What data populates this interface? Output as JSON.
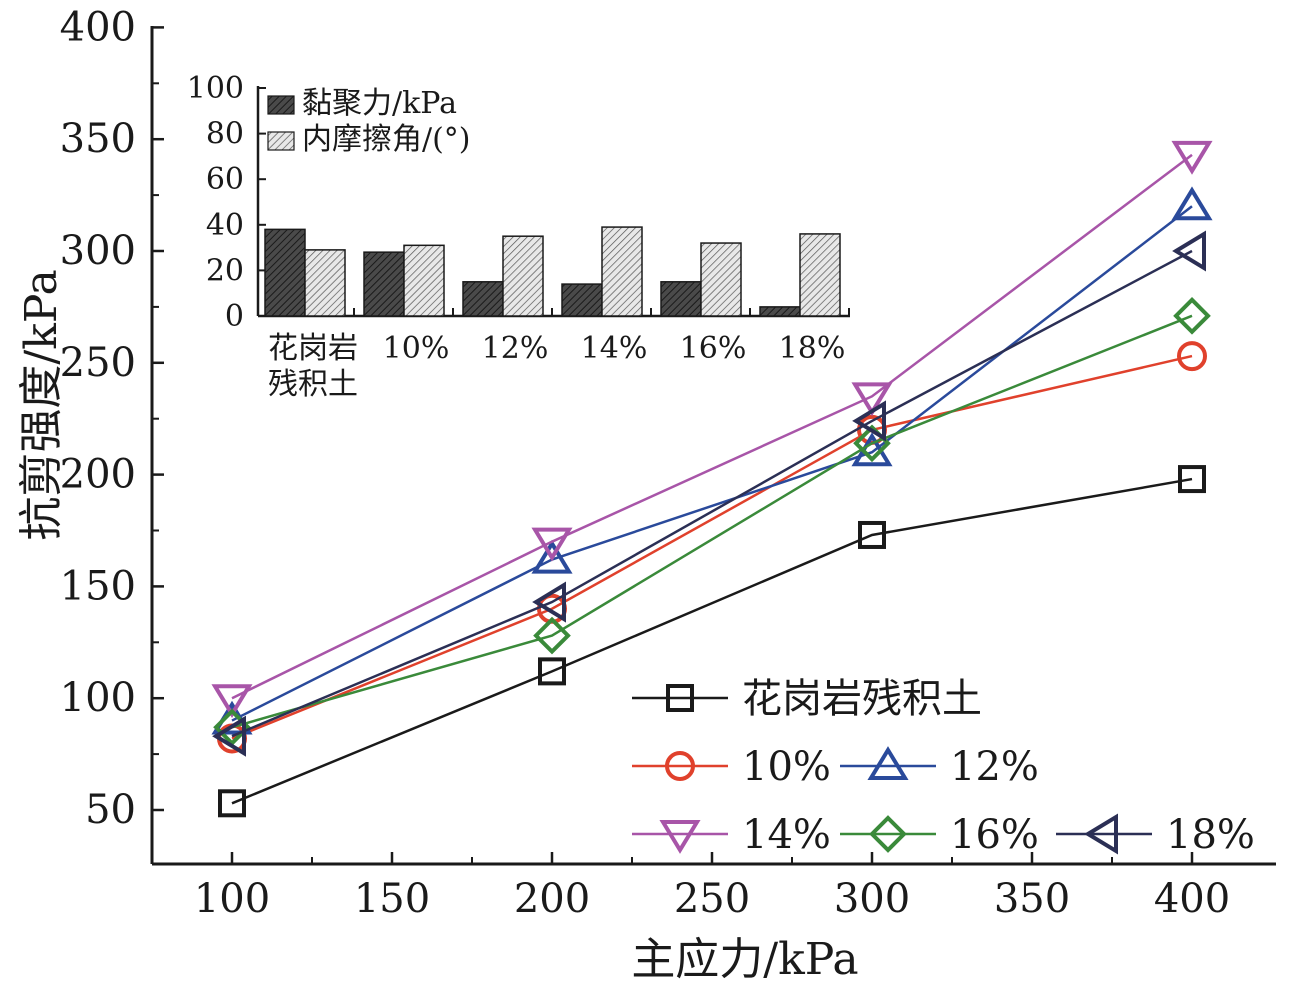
{
  "chart_data": [
    {
      "type": "line",
      "title": "",
      "xlabel": "主应力/kPa",
      "ylabel": "抗剪强度/kPa",
      "xlim": [
        75,
        400
      ],
      "ylim": [
        25,
        400
      ],
      "x": [
        100,
        200,
        300,
        400
      ],
      "x_ticks": [
        "100",
        "150",
        "200",
        "250",
        "300",
        "350",
        "400"
      ],
      "y_ticks": [
        "50",
        "100",
        "150",
        "200",
        "250",
        "300",
        "350",
        "400"
      ],
      "grid": false,
      "legend_position": "bottom-right",
      "series": [
        {
          "name": "花岗岩残积土",
          "marker": "square",
          "color": "#1a1a1a",
          "values": [
            53,
            112,
            173,
            198
          ]
        },
        {
          "name": "10%",
          "marker": "circle",
          "color": "#e0412c",
          "values": [
            82,
            140,
            220,
            253
          ]
        },
        {
          "name": "12%",
          "marker": "triangle-up",
          "color": "#2a4a9b",
          "values": [
            90,
            162,
            210,
            320
          ]
        },
        {
          "name": "14%",
          "marker": "triangle-down",
          "color": "#a855a8",
          "values": [
            100,
            170,
            235,
            343
          ]
        },
        {
          "name": "16%",
          "marker": "diamond",
          "color": "#3a8a3a",
          "values": [
            87,
            128,
            214,
            271
          ]
        },
        {
          "name": "18%",
          "marker": "triangle-left",
          "color": "#2b2f55",
          "values": [
            83,
            143,
            224,
            300
          ]
        }
      ]
    },
    {
      "type": "bar",
      "title": "",
      "categories": [
        "花岗岩\n残积土",
        "10%",
        "12%",
        "14%",
        "16%",
        "18%"
      ],
      "y_ticks": [
        "0",
        "20",
        "40",
        "60",
        "80",
        "100"
      ],
      "ylim": [
        0,
        100
      ],
      "legend_position": "top-left",
      "series": [
        {
          "name": "黏聚力/kPa",
          "pattern": "dark-hatch",
          "values": [
            38,
            28,
            15,
            14,
            15,
            4
          ]
        },
        {
          "name": "内摩擦角/(°)",
          "pattern": "light-hatch",
          "values": [
            29,
            31,
            35,
            39,
            32,
            36
          ]
        }
      ]
    }
  ]
}
